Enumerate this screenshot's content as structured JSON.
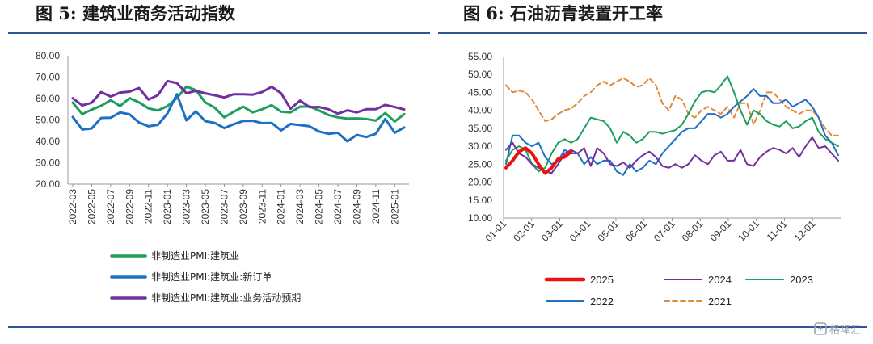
{
  "figures": [
    {
      "title": "图 5: 建筑业商务活动指数"
    },
    {
      "title": "图 6: 石油沥青装置开工率"
    }
  ],
  "watermark": {
    "text": "格隆汇",
    "icon": "glh-logo-icon"
  },
  "colors": {
    "rule": "#2f5597",
    "green": "#1e9e5e",
    "blue": "#1f6fc5",
    "purple": "#7030a0",
    "red": "#ee1111",
    "orange": "#e08a3c"
  },
  "chart_data": [
    {
      "type": "line",
      "ylim": [
        20,
        80
      ],
      "yticks": [
        "20.00",
        "30.00",
        "40.00",
        "50.00",
        "60.00",
        "70.00",
        "80.00"
      ],
      "x_tick_labels": [
        "2022-03",
        "2022-05",
        "2022-07",
        "2022-09",
        "2022-11",
        "2023-01",
        "2023-03",
        "2023-05",
        "2023-07",
        "2023-09",
        "2023-11",
        "2024-01",
        "2024-03",
        "2024-05",
        "2024-07",
        "2024-09",
        "2024-11",
        "2025-01"
      ],
      "x": [
        "2022-03",
        "2022-04",
        "2022-05",
        "2022-06",
        "2022-07",
        "2022-08",
        "2022-09",
        "2022-10",
        "2022-11",
        "2022-12",
        "2023-01",
        "2023-02",
        "2023-03",
        "2023-04",
        "2023-05",
        "2023-06",
        "2023-07",
        "2023-08",
        "2023-09",
        "2023-10",
        "2023-11",
        "2023-12",
        "2024-01",
        "2024-02",
        "2024-03",
        "2024-04",
        "2024-05",
        "2024-06",
        "2024-07",
        "2024-08",
        "2024-09",
        "2024-10",
        "2024-11",
        "2024-12",
        "2025-01",
        "2025-02"
      ],
      "legend_position": "bottom",
      "series": [
        {
          "name": "非制造业PMI:建筑业",
          "color": "#1e9e5e",
          "values": [
            58.1,
            52.7,
            54.8,
            56.6,
            59.2,
            56.5,
            60.2,
            58.2,
            55.4,
            54.4,
            56.4,
            60.2,
            65.6,
            63.9,
            58.2,
            55.7,
            51.2,
            53.8,
            56.2,
            53.5,
            55.0,
            56.9,
            53.9,
            53.5,
            56.2,
            56.3,
            54.4,
            52.3,
            51.2,
            50.6,
            50.7,
            50.4,
            49.7,
            53.2,
            49.3,
            52.7
          ]
        },
        {
          "name": "非制造业PMI:建筑业:新订单",
          "color": "#1f6fc5",
          "values": [
            51.4,
            45.5,
            46.0,
            50.9,
            51.0,
            53.5,
            52.6,
            48.8,
            47.0,
            47.7,
            53.0,
            62.0,
            49.8,
            54.0,
            49.4,
            48.6,
            46.2,
            48.0,
            49.5,
            49.6,
            48.5,
            48.6,
            45.1,
            48.1,
            47.6,
            47.0,
            44.6,
            43.5,
            44.0,
            40.0,
            43.0,
            42.0,
            43.5,
            50.5,
            44.0,
            46.5
          ]
        },
        {
          "name": "非制造业PMI:建筑业:业务活动预期",
          "color": "#7030a0",
          "values": [
            60.1,
            56.8,
            58.0,
            63.0,
            60.9,
            62.8,
            63.2,
            64.9,
            59.5,
            61.6,
            68.2,
            67.2,
            62.5,
            63.6,
            62.4,
            61.5,
            60.5,
            62.0,
            62.0,
            61.8,
            63.0,
            65.5,
            62.5,
            55.2,
            59.0,
            56.0,
            56.0,
            55.0,
            52.9,
            54.5,
            53.5,
            55.0,
            55.0,
            57.0,
            56.0,
            54.9
          ]
        }
      ]
    },
    {
      "type": "line",
      "ylim": [
        10,
        55
      ],
      "yticks": [
        "10.00",
        "15.00",
        "20.00",
        "25.00",
        "30.00",
        "35.00",
        "40.00",
        "45.00",
        "50.00",
        "55.00"
      ],
      "x_tick_labels": [
        "01-01",
        "02-01",
        "03-01",
        "04-01",
        "05-01",
        "06-01",
        "07-01",
        "08-01",
        "09-01",
        "10-01",
        "11-01",
        "12-01"
      ],
      "x_unit": "weeks from 01-01 (52 per year)",
      "legend_position": "bottom",
      "series": [
        {
          "name": "2025",
          "color": "#ee1111",
          "style": "solid-thick",
          "values": [
            [
              0,
              24
            ],
            [
              1,
              26
            ],
            [
              2,
              28.5
            ],
            [
              3,
              29.5
            ],
            [
              4,
              28
            ],
            [
              5,
              25
            ],
            [
              6,
              22.5
            ],
            [
              7,
              24
            ],
            [
              8,
              26.5
            ],
            [
              9,
              27
            ],
            [
              10,
              28.5
            ]
          ]
        },
        {
          "name": "2024",
          "color": "#7030a0",
          "style": "solid",
          "values": [
            [
              0,
              29
            ],
            [
              1,
              31
            ],
            [
              2,
              28
            ],
            [
              3,
              27
            ],
            [
              4,
              25
            ],
            [
              5,
              24
            ],
            [
              6,
              23
            ],
            [
              7,
              22.5
            ],
            [
              8,
              25
            ],
            [
              9,
              28
            ],
            [
              10,
              29
            ],
            [
              11,
              28
            ],
            [
              12,
              29.5
            ],
            [
              13,
              24.5
            ],
            [
              14,
              29.5
            ],
            [
              15,
              28
            ],
            [
              16,
              25
            ],
            [
              17,
              24.5
            ],
            [
              18,
              25.5
            ],
            [
              19,
              24
            ],
            [
              20,
              26
            ],
            [
              21,
              27.5
            ],
            [
              22,
              28.5
            ],
            [
              23,
              27
            ],
            [
              24,
              24.5
            ],
            [
              25,
              24
            ],
            [
              26,
              25
            ],
            [
              27,
              24
            ],
            [
              28,
              25
            ],
            [
              29,
              27.5
            ],
            [
              30,
              26
            ],
            [
              31,
              25
            ],
            [
              32,
              27.5
            ],
            [
              33,
              28.5
            ],
            [
              34,
              26
            ],
            [
              35,
              26
            ],
            [
              36,
              29
            ],
            [
              37,
              25
            ],
            [
              38,
              24.5
            ],
            [
              39,
              27
            ],
            [
              40,
              28.5
            ],
            [
              41,
              29.5
            ],
            [
              42,
              29
            ],
            [
              43,
              28
            ],
            [
              44,
              29.5
            ],
            [
              45,
              27
            ],
            [
              46,
              30
            ],
            [
              47,
              32.5
            ],
            [
              48,
              29.5
            ],
            [
              49,
              30
            ],
            [
              50,
              28
            ],
            [
              51,
              26
            ]
          ]
        },
        {
          "name": "2023",
          "color": "#1e9e5e",
          "style": "solid",
          "values": [
            [
              0,
              26
            ],
            [
              1,
              29
            ],
            [
              2,
              30
            ],
            [
              3,
              29
            ],
            [
              4,
              25
            ],
            [
              5,
              23
            ],
            [
              6,
              24
            ],
            [
              7,
              28
            ],
            [
              8,
              31
            ],
            [
              9,
              32
            ],
            [
              10,
              31
            ],
            [
              11,
              32
            ],
            [
              12,
              35
            ],
            [
              13,
              38
            ],
            [
              14,
              37.5
            ],
            [
              15,
              37
            ],
            [
              16,
              35
            ],
            [
              17,
              31
            ],
            [
              18,
              34
            ],
            [
              19,
              33
            ],
            [
              20,
              31
            ],
            [
              21,
              32
            ],
            [
              22,
              34
            ],
            [
              23,
              34
            ],
            [
              24,
              33.5
            ],
            [
              25,
              34
            ],
            [
              26,
              34.5
            ],
            [
              27,
              36
            ],
            [
              28,
              39
            ],
            [
              29,
              42.5
            ],
            [
              30,
              45
            ],
            [
              31,
              45.5
            ],
            [
              32,
              45
            ],
            [
              33,
              47
            ],
            [
              34,
              49.5
            ],
            [
              35,
              45
            ],
            [
              36,
              40
            ],
            [
              37,
              36
            ],
            [
              38,
              40
            ],
            [
              39,
              39
            ],
            [
              40,
              37
            ],
            [
              41,
              36
            ],
            [
              42,
              35.5
            ],
            [
              43,
              37
            ],
            [
              44,
              35
            ],
            [
              45,
              35.5
            ],
            [
              46,
              37
            ],
            [
              47,
              38
            ],
            [
              48,
              34
            ],
            [
              49,
              32
            ],
            [
              50,
              31
            ],
            [
              51,
              30
            ]
          ]
        },
        {
          "name": "2022",
          "color": "#1f6fc5",
          "style": "solid",
          "values": [
            [
              0,
              25
            ],
            [
              1,
              33
            ],
            [
              2,
              33
            ],
            [
              3,
              31
            ],
            [
              4,
              30
            ],
            [
              5,
              31
            ],
            [
              6,
              27
            ],
            [
              7,
              25
            ],
            [
              8,
              26
            ],
            [
              9,
              29
            ],
            [
              10,
              28
            ],
            [
              11,
              28
            ],
            [
              12,
              25
            ],
            [
              13,
              27
            ],
            [
              14,
              25
            ],
            [
              15,
              26
            ],
            [
              16,
              26
            ],
            [
              17,
              23
            ],
            [
              18,
              22
            ],
            [
              19,
              25
            ],
            [
              20,
              23
            ],
            [
              21,
              24
            ],
            [
              22,
              26
            ],
            [
              23,
              25
            ],
            [
              24,
              28
            ],
            [
              25,
              30
            ],
            [
              26,
              32
            ],
            [
              27,
              34
            ],
            [
              28,
              35
            ],
            [
              29,
              35
            ],
            [
              30,
              37
            ],
            [
              31,
              39
            ],
            [
              32,
              39
            ],
            [
              33,
              38
            ],
            [
              34,
              39
            ],
            [
              35,
              41
            ],
            [
              36,
              42.5
            ],
            [
              37,
              44
            ],
            [
              38,
              46
            ],
            [
              39,
              44
            ],
            [
              40,
              44
            ],
            [
              41,
              42
            ],
            [
              42,
              42
            ],
            [
              43,
              43
            ],
            [
              44,
              41
            ],
            [
              45,
              42
            ],
            [
              46,
              43
            ],
            [
              47,
              41
            ],
            [
              48,
              38
            ],
            [
              49,
              33
            ],
            [
              50,
              31
            ],
            [
              51,
              27.5
            ]
          ]
        },
        {
          "name": "2021",
          "color": "#e08a3c",
          "style": "dashed",
          "values": [
            [
              0,
              47
            ],
            [
              1,
              45
            ],
            [
              2,
              45.5
            ],
            [
              3,
              45
            ],
            [
              4,
              43
            ],
            [
              5,
              40
            ],
            [
              6,
              37
            ],
            [
              7,
              37.5
            ],
            [
              8,
              39
            ],
            [
              9,
              40
            ],
            [
              10,
              40.5
            ],
            [
              11,
              42
            ],
            [
              12,
              44
            ],
            [
              13,
              45
            ],
            [
              14,
              47
            ],
            [
              15,
              48
            ],
            [
              16,
              47
            ],
            [
              17,
              48
            ],
            [
              18,
              49
            ],
            [
              19,
              48
            ],
            [
              20,
              46.5
            ],
            [
              21,
              47
            ],
            [
              22,
              49
            ],
            [
              23,
              47
            ],
            [
              24,
              42
            ],
            [
              25,
              40
            ],
            [
              26,
              44
            ],
            [
              27,
              43
            ],
            [
              28,
              39
            ],
            [
              29,
              38
            ],
            [
              30,
              40
            ],
            [
              31,
              41
            ],
            [
              32,
              40
            ],
            [
              33,
              39
            ],
            [
              34,
              41
            ],
            [
              35,
              38
            ],
            [
              36,
              42
            ],
            [
              37,
              42
            ],
            [
              38,
              36
            ],
            [
              39,
              40
            ],
            [
              40,
              45
            ],
            [
              41,
              45
            ],
            [
              42,
              43
            ],
            [
              43,
              41
            ],
            [
              44,
              40
            ],
            [
              45,
              39
            ],
            [
              46,
              40
            ],
            [
              47,
              40
            ],
            [
              48,
              38
            ],
            [
              49,
              35
            ],
            [
              50,
              33
            ],
            [
              51,
              33
            ]
          ]
        }
      ]
    }
  ]
}
